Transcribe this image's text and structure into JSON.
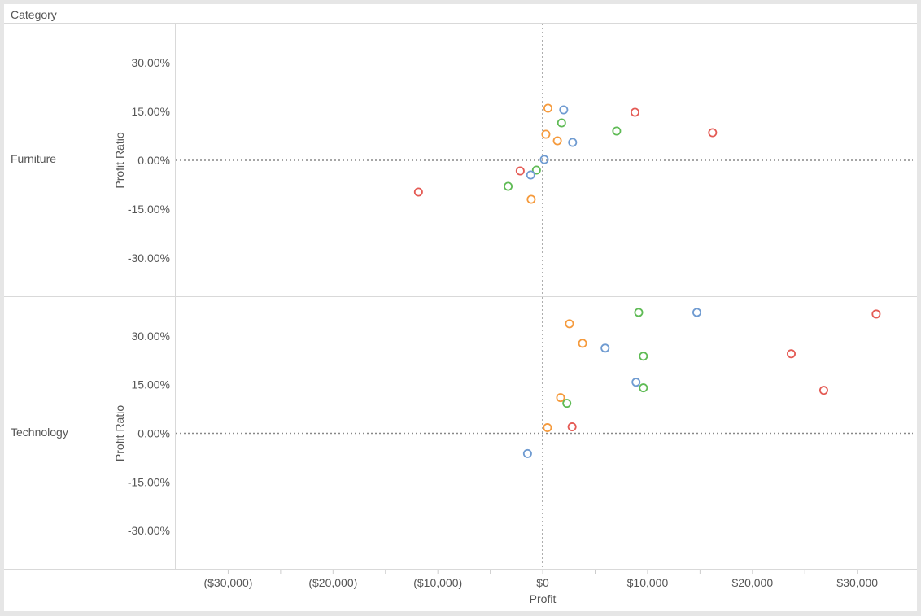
{
  "header": {
    "column_label": "Category"
  },
  "chart_data": {
    "type": "scatter",
    "xlabel": "Profit",
    "ylabel": "Profit Ratio",
    "xlim": [
      -35000,
      35300
    ],
    "ylim": [
      -41.75,
      42.25
    ],
    "x_ticks": [
      -30000,
      -20000,
      -10000,
      0,
      10000,
      20000,
      30000
    ],
    "x_tick_labels": [
      "($30,000)",
      "($20,000)",
      "($10,000)",
      "$0",
      "$10,000",
      "$20,000",
      "$30,000"
    ],
    "y_ticks": [
      30,
      15,
      0,
      -15,
      -30
    ],
    "y_tick_labels": [
      "30.00%",
      "15.00%",
      "0.00%",
      "-15.00%",
      "-30.00%"
    ],
    "colors": {
      "blue": "#6f9bd1",
      "orange": "#f59a3c",
      "green": "#5fbb55",
      "red": "#e45a54"
    },
    "panels": [
      {
        "category": "Furniture",
        "points": [
          {
            "x": 500,
            "y": 16.0,
            "color": "orange"
          },
          {
            "x": 2000,
            "y": 15.5,
            "color": "blue"
          },
          {
            "x": 8800,
            "y": 14.75,
            "color": "red"
          },
          {
            "x": 1800,
            "y": 11.5,
            "color": "green"
          },
          {
            "x": 7050,
            "y": 9.0,
            "color": "green"
          },
          {
            "x": 16200,
            "y": 8.5,
            "color": "red"
          },
          {
            "x": 300,
            "y": 8.0,
            "color": "orange"
          },
          {
            "x": 1400,
            "y": 6.0,
            "color": "orange"
          },
          {
            "x": 2850,
            "y": 5.5,
            "color": "blue"
          },
          {
            "x": 150,
            "y": 0.25,
            "color": "blue"
          },
          {
            "x": -2150,
            "y": -3.25,
            "color": "red"
          },
          {
            "x": -600,
            "y": -3.0,
            "color": "green"
          },
          {
            "x": -1150,
            "y": -4.5,
            "color": "blue"
          },
          {
            "x": -3300,
            "y": -8.0,
            "color": "green"
          },
          {
            "x": -11850,
            "y": -9.75,
            "color": "red"
          },
          {
            "x": -1100,
            "y": -12.0,
            "color": "orange"
          }
        ]
      },
      {
        "category": "Technology",
        "points": [
          {
            "x": 9150,
            "y": 37.25,
            "color": "green"
          },
          {
            "x": 14700,
            "y": 37.25,
            "color": "blue"
          },
          {
            "x": 31800,
            "y": 36.75,
            "color": "red"
          },
          {
            "x": 2550,
            "y": 33.75,
            "color": "orange"
          },
          {
            "x": 3800,
            "y": 27.75,
            "color": "orange"
          },
          {
            "x": 5950,
            "y": 26.25,
            "color": "blue"
          },
          {
            "x": 9600,
            "y": 23.75,
            "color": "green"
          },
          {
            "x": 23700,
            "y": 24.5,
            "color": "red"
          },
          {
            "x": 8900,
            "y": 15.75,
            "color": "blue"
          },
          {
            "x": 9600,
            "y": 14.0,
            "color": "green"
          },
          {
            "x": 26800,
            "y": 13.25,
            "color": "red"
          },
          {
            "x": 1700,
            "y": 11.0,
            "color": "orange"
          },
          {
            "x": 2300,
            "y": 9.25,
            "color": "green"
          },
          {
            "x": 450,
            "y": 1.75,
            "color": "orange"
          },
          {
            "x": 2800,
            "y": 2.0,
            "color": "red"
          },
          {
            "x": -1450,
            "y": -6.25,
            "color": "blue"
          }
        ]
      }
    ]
  }
}
